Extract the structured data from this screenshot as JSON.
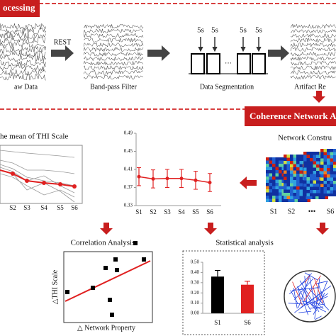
{
  "preprocessing": {
    "title": "ocessing",
    "arrow_label": "REST",
    "steps": [
      "aw Data",
      "Band-pass Filter",
      "Data Segmentation",
      "Artifact Re"
    ],
    "segment_labels": [
      "5s",
      "5s",
      "5s",
      "5s"
    ],
    "ellipsis": "···"
  },
  "coherence": {
    "title": "Coherence Network A"
  },
  "thi_chart": {
    "title": "he mean of THI Scale",
    "categories": [
      "S2",
      "S3",
      "S4",
      "S5",
      "S6"
    ]
  },
  "network_property": {
    "title": "Network Property",
    "type": "line",
    "categories": [
      "S1",
      "S2",
      "S3",
      "S4",
      "S5",
      "S6"
    ],
    "values": [
      0.394,
      0.389,
      0.39,
      0.39,
      0.386,
      0.381
    ],
    "errors": [
      0.02,
      0.02,
      0.02,
      0.02,
      0.02,
      0.02
    ],
    "color": "#e02020",
    "ylim": [
      0.33,
      0.49
    ],
    "yticks": [
      0.33,
      0.37,
      0.41,
      0.45,
      0.49
    ]
  },
  "network_construction": {
    "title": "Network Constru",
    "labels": [
      "S1",
      "S2",
      "•••",
      "S6"
    ]
  },
  "correlation": {
    "title": "Correlation Analysis",
    "y_label": "△THI Scale",
    "x_label": "△ Network Property"
  },
  "statistical": {
    "title": "Statistical analysis",
    "type": "bar",
    "categories": [
      "S1",
      "S6"
    ],
    "values": [
      0.36,
      0.28
    ],
    "errors": [
      0.06,
      0.035
    ],
    "colors": [
      "#000000",
      "#e02020"
    ],
    "ylim": [
      0,
      0.5
    ],
    "yticks": [
      {
        "value": 0,
        "label": "0.00"
      },
      {
        "value": 0.1,
        "label": "0.10"
      },
      {
        "value": 0.2,
        "label": "0.20"
      },
      {
        "value": 0.3,
        "label": "0.30"
      },
      {
        "value": 0.4,
        "label": "0.40"
      },
      {
        "value": 0.5,
        "label": "0.50"
      }
    ]
  }
}
